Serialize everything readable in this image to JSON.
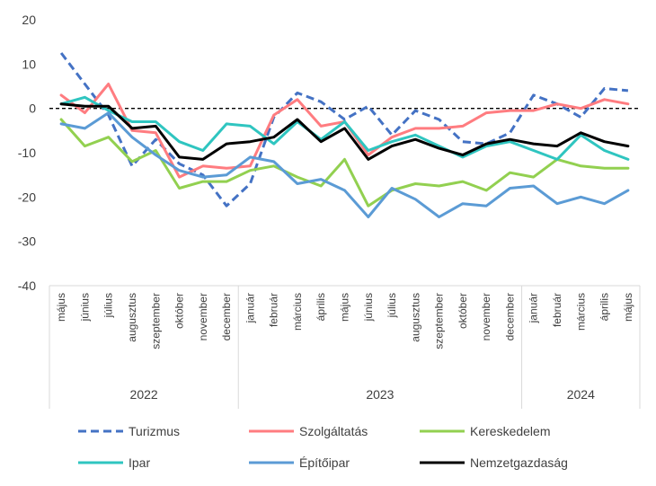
{
  "chart_data": {
    "type": "line",
    "title": "",
    "xlabel": "",
    "ylabel": "",
    "ylim": [
      -40,
      20
    ],
    "yticks": [
      20,
      10,
      0,
      -10,
      -20,
      -30,
      -40
    ],
    "grid": false,
    "legend_position": "bottom",
    "categories": [
      "május",
      "június",
      "július",
      "augusztus",
      "szeptember",
      "október",
      "november",
      "december",
      "január",
      "február",
      "március",
      "április",
      "május",
      "június",
      "július",
      "augusztus",
      "szeptember",
      "október",
      "november",
      "december",
      "január",
      "február",
      "március",
      "április",
      "május"
    ],
    "year_groups": [
      {
        "label": "2022",
        "start": 0,
        "end": 7
      },
      {
        "label": "2023",
        "start": 8,
        "end": 19
      },
      {
        "label": "2024",
        "start": 20,
        "end": 24
      }
    ],
    "series": [
      {
        "name": "Turizmus",
        "color": "#4472C4",
        "dashed": true,
        "values": [
          12.5,
          5.5,
          -1.5,
          -13,
          -7,
          -12.5,
          -15,
          -22,
          -17,
          -2,
          3.5,
          1.5,
          -2.5,
          0.5,
          -6,
          -0.5,
          -2.5,
          -7.5,
          -8,
          -5.5,
          3,
          1,
          -2,
          4.5,
          4
        ]
      },
      {
        "name": "Szolgáltatás",
        "color": "#FF7C80",
        "dashed": false,
        "values": [
          3,
          -1,
          5.5,
          -5,
          -5.5,
          -15.5,
          -13,
          -13.5,
          -13,
          -1.5,
          2,
          -4,
          -3,
          -10.5,
          -6.5,
          -4.5,
          -4.5,
          -4,
          -1,
          -0.5,
          -0.5,
          1,
          0,
          2,
          1
        ]
      },
      {
        "name": "Kereskedelem",
        "color": "#92D050",
        "dashed": false,
        "values": [
          -2.5,
          -8.5,
          -6.5,
          -12,
          -9.5,
          -18,
          -16.5,
          -16.5,
          -14,
          -13,
          -15.5,
          -17.5,
          -11.5,
          -22,
          -18.5,
          -17,
          -17.5,
          -16.5,
          -18.5,
          -14.5,
          -15.5,
          -11.5,
          -13,
          -13.5,
          -13.5
        ]
      },
      {
        "name": "Ipar",
        "color": "#2FC5C0",
        "dashed": false,
        "values": [
          1,
          2.5,
          -0.5,
          -3,
          -3,
          -7.5,
          -9.5,
          -3.5,
          -4,
          -8,
          -3,
          -7,
          -3,
          -9.5,
          -7.5,
          -6,
          -8.5,
          -11,
          -8.5,
          -7.5,
          -9.5,
          -11.5,
          -6,
          -9.5,
          -11.5
        ]
      },
      {
        "name": "Építőipar",
        "color": "#5B9BD5",
        "dashed": false,
        "values": [
          -3.5,
          -4.5,
          -1,
          -6.5,
          -10.5,
          -14,
          -15.5,
          -15,
          -11,
          -12,
          -17,
          -16,
          -18.5,
          -24.5,
          -18,
          -20.5,
          -24.5,
          -21.5,
          -22,
          -18,
          -17.5,
          -21.5,
          -20,
          -21.5,
          -18.5
        ]
      },
      {
        "name": "Nemzetgazdaság",
        "color": "#000000",
        "dashed": false,
        "values": [
          1,
          0.5,
          0.5,
          -4.5,
          -4,
          -11,
          -11.5,
          -8,
          -7.5,
          -6.5,
          -2.5,
          -7.5,
          -4.5,
          -11.5,
          -8.5,
          -7,
          -9,
          -10.5,
          -8,
          -7,
          -8,
          -8.5,
          -5.5,
          -7.5,
          -8.5
        ]
      }
    ]
  }
}
